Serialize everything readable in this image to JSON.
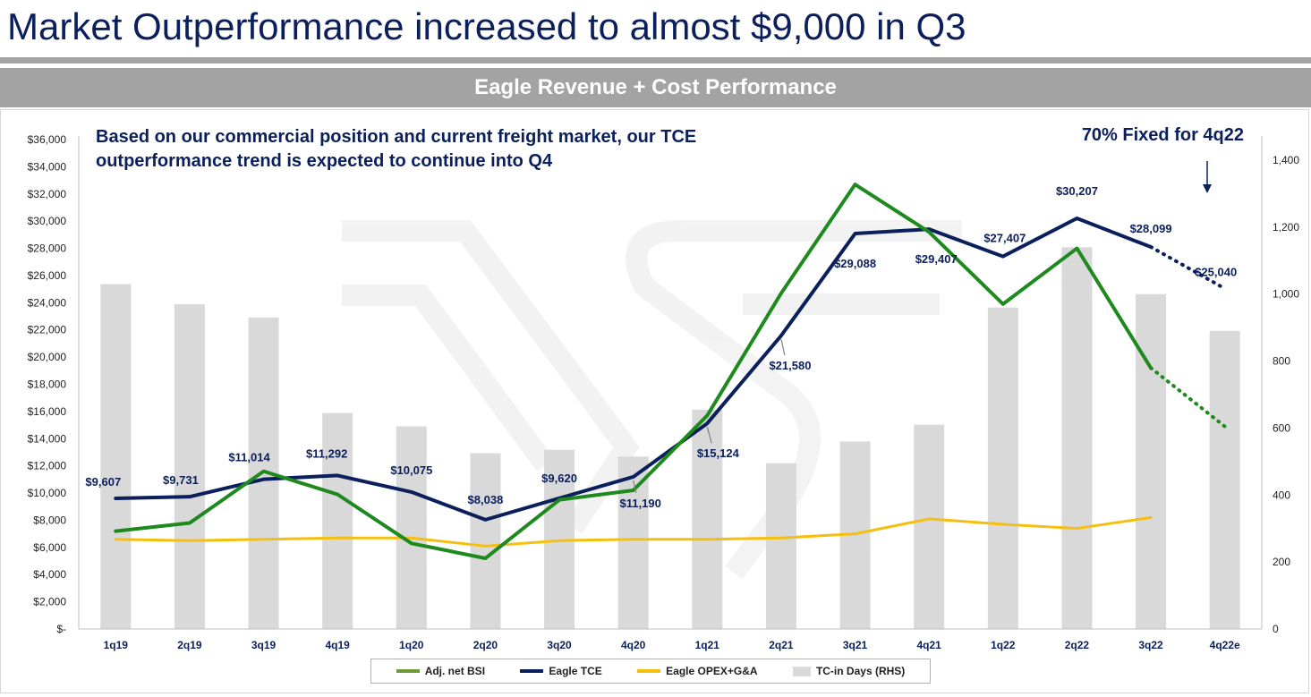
{
  "slide": {
    "title": "Market Outperformance increased to almost $9,000 in Q3",
    "band_title": "Eagle Revenue + Cost Performance"
  },
  "annotations": {
    "note": "Based on our commercial position and current freight market, our TCE outperformance trend is expected to continue into Q4",
    "callout": "70% Fixed for 4q22"
  },
  "colors": {
    "bsi": "#1e8a1e",
    "legend_bsi": "#6f9a3a",
    "tce": "#0b1f5c",
    "opex": "#f5bf10",
    "bars": "#d9d9d9",
    "title": "#0b1f5c"
  },
  "chart_data": {
    "type": "bar",
    "categories": [
      "1q19",
      "2q19",
      "3q19",
      "4q19",
      "1q20",
      "2q20",
      "3q20",
      "4q20",
      "1q21",
      "2q21",
      "3q21",
      "4q21",
      "1q22",
      "2q22",
      "3q22",
      "4q22e"
    ],
    "y_left": {
      "ylim": [
        0,
        36000
      ],
      "ticks": [
        0,
        2000,
        4000,
        6000,
        8000,
        10000,
        12000,
        14000,
        16000,
        18000,
        20000,
        22000,
        24000,
        26000,
        28000,
        30000,
        32000,
        34000,
        36000
      ],
      "tick_labels": [
        "$-",
        "$2,000",
        "$4,000",
        "$6,000",
        "$8,000",
        "$10,000",
        "$12,000",
        "$14,000",
        "$16,000",
        "$18,000",
        "$20,000",
        "$22,000",
        "$24,000",
        "$26,000",
        "$28,000",
        "$30,000",
        "$32,000",
        "$34,000",
        "$36,000"
      ]
    },
    "y_right": {
      "ylim": [
        0,
        1400
      ],
      "ticks": [
        0,
        200,
        400,
        600,
        800,
        1000,
        1200,
        1400
      ],
      "tick_labels": [
        "0",
        "200",
        "400",
        "600",
        "800",
        "1,000",
        "1,200",
        "1,400"
      ]
    },
    "series": [
      {
        "name": "TC-in Days (RHS)",
        "type": "bar",
        "axis": "right",
        "values": [
          1030,
          970,
          930,
          645,
          605,
          525,
          535,
          515,
          655,
          495,
          560,
          610,
          960,
          1140,
          1000,
          890
        ]
      },
      {
        "name": "Adj. net BSI",
        "type": "line",
        "axis": "left",
        "values": [
          7200,
          7800,
          11600,
          9900,
          6300,
          5200,
          9500,
          10200,
          15700,
          24700,
          32700,
          29200,
          23900,
          28000,
          19200,
          14900
        ],
        "projected_from_index": 14
      },
      {
        "name": "Eagle TCE",
        "type": "line",
        "axis": "left",
        "values": [
          9607,
          9731,
          11014,
          11292,
          10075,
          8038,
          9620,
          11190,
          15124,
          21580,
          29088,
          29407,
          27407,
          30207,
          28099,
          25040
        ],
        "projected_from_index": 14,
        "data_labels": [
          "$9,607",
          "$9,731",
          "$11,014",
          "$11,292",
          "$10,075",
          "$8,038",
          "$9,620",
          "$11,190",
          "$15,124",
          "$21,580",
          "$29,088",
          "$29,407",
          "$27,407",
          "$30,207",
          "$28,099",
          "$25,040"
        ]
      },
      {
        "name": "Eagle OPEX+G&A",
        "type": "line",
        "axis": "left",
        "values": [
          6600,
          6500,
          6600,
          6700,
          6700,
          6100,
          6500,
          6600,
          6600,
          6700,
          7000,
          8100,
          7700,
          7400,
          8200,
          null
        ]
      }
    ],
    "legend": {
      "position": "bottom",
      "entries": [
        "Adj. net BSI",
        "Eagle TCE",
        "Eagle OPEX+G&A",
        "TC-in Days (RHS)"
      ]
    },
    "grid": false
  }
}
